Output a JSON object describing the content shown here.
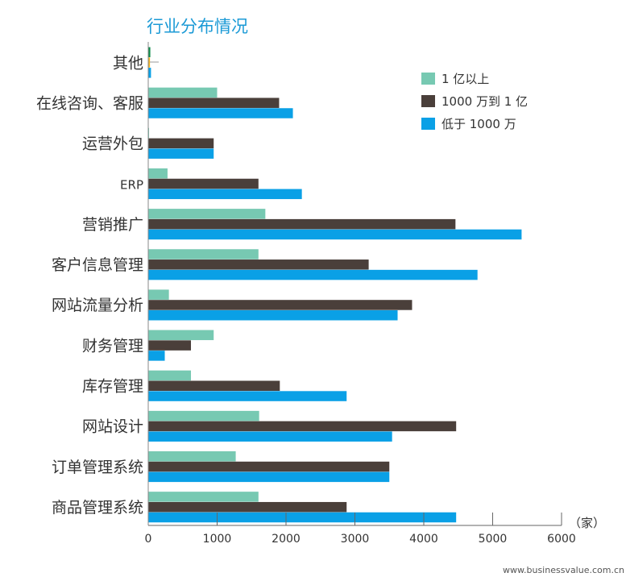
{
  "chart_data": {
    "type": "bar",
    "orientation": "horizontal",
    "title": "行业分布情况",
    "unit": "（家）",
    "categories": [
      "其他",
      "在线咨询、客服",
      "运营外包",
      "ERP",
      "营销推广",
      "客户信息管理",
      "网站流量分析",
      "财务管理",
      "库存管理",
      "网站设计",
      "订单管理系统",
      "商品管理系统"
    ],
    "series": [
      {
        "name": "1 亿以上",
        "color": "#77c9b2",
        "values": [
          30,
          1000,
          10,
          280,
          1700,
          1600,
          300,
          950,
          620,
          1610,
          1270,
          1600
        ]
      },
      {
        "name": "1000 万到 1 亿",
        "color": "#4a3f3a",
        "values": [
          25,
          1900,
          950,
          1600,
          4460,
          3200,
          3830,
          620,
          1910,
          4470,
          3500,
          2880
        ]
      },
      {
        "name": "低于 1000 万",
        "color": "#0aa0e6",
        "values": [
          40,
          2100,
          950,
          2230,
          5420,
          4780,
          3620,
          240,
          2880,
          3540,
          3500,
          4470
        ]
      }
    ],
    "other_series_colors": [
      "#0b8a4a",
      "#f2b21f",
      "#0aa0e6"
    ],
    "xlim": [
      0,
      6000
    ],
    "xticks": [
      0,
      1000,
      2000,
      3000,
      4000,
      5000,
      6000
    ],
    "xtick_labels": [
      "0",
      "1000",
      "2000",
      "3000",
      "4000",
      "5000",
      "6000"
    ],
    "grid": false,
    "legend": "top-right"
  },
  "footer": {
    "watermark": "www.businessvalue.com.cn"
  }
}
